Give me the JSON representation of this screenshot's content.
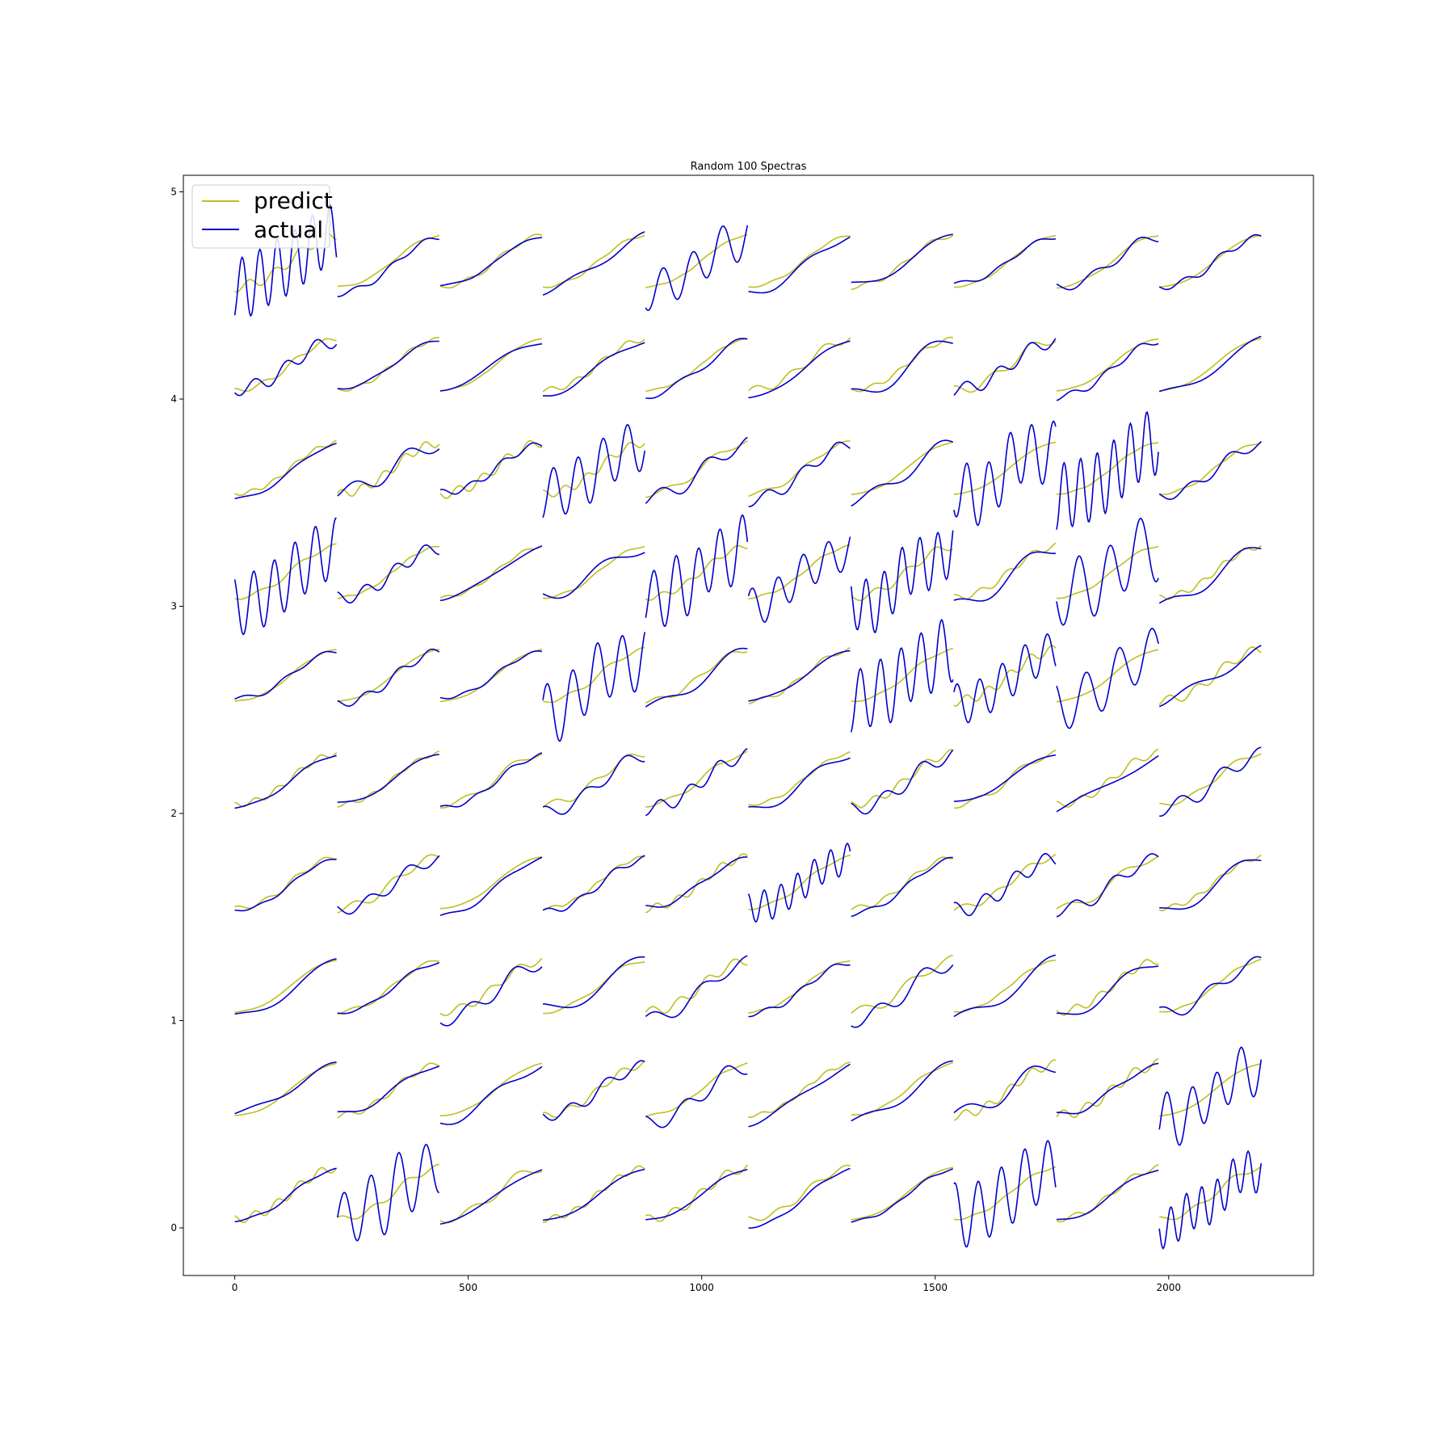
{
  "chart_data": {
    "type": "line",
    "title": "Random 100 Spectras",
    "xlabel": "",
    "ylabel": "",
    "xlim": [
      -110,
      2310
    ],
    "ylim": [
      -0.23,
      5.08
    ],
    "x_ticks": [
      0,
      500,
      1000,
      1500,
      2000
    ],
    "x_tick_labels": [
      "0",
      "500",
      "1000",
      "1500",
      "2000"
    ],
    "y_ticks": [
      0,
      1,
      2,
      3,
      4,
      5
    ],
    "y_tick_labels": [
      "0",
      "1",
      "2",
      "3",
      "4",
      "5"
    ],
    "grid": false,
    "legend": {
      "position": "upper-left",
      "entries": [
        {
          "name": "predict",
          "color": "#bfbf20"
        },
        {
          "name": "actual",
          "color": "#0000cc"
        }
      ]
    },
    "layout": {
      "rows": 10,
      "cols": 10,
      "points_per_spectrum": 220,
      "row_offset_step": 0.5,
      "note": "Each of 100 spectra is plotted at x = col*220 + i and vertically offset by row index (top row offset 4.5, bottom row offset 0.0)."
    },
    "series": [
      {
        "name": "predict",
        "color": "#bfbf20"
      },
      {
        "name": "actual",
        "color": "#0000cc"
      }
    ]
  }
}
